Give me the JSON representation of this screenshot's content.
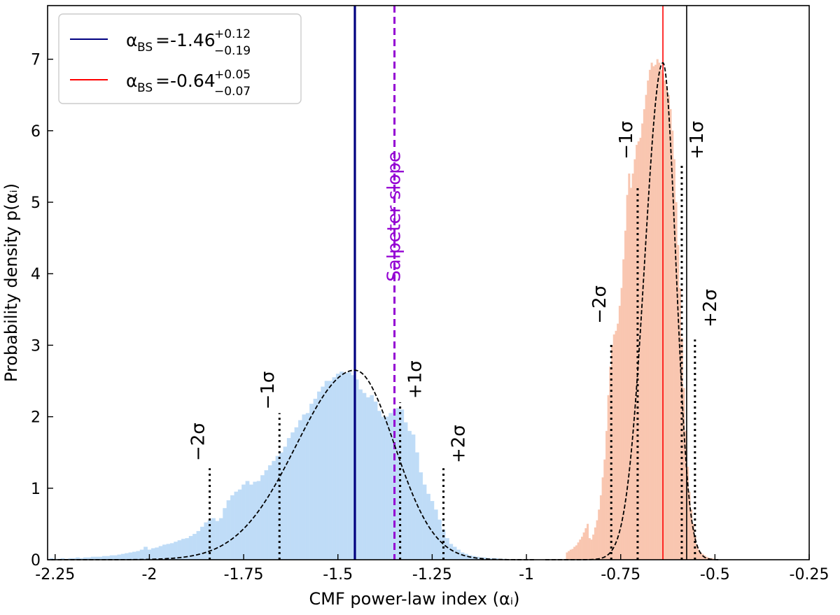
{
  "chart_data": {
    "type": "bar",
    "title": "",
    "xlabel": "CMF power-law index (αᵢ)",
    "ylabel": "Probability density p(αᵢ)",
    "xlim": [
      -2.27,
      -0.25
    ],
    "ylim": [
      0,
      7.75
    ],
    "grid": false,
    "legend_position": "top-left",
    "x_ticks": [
      -2.25,
      -2,
      -1.75,
      -1.5,
      -1.25,
      -1,
      -0.75,
      -0.5,
      -0.25
    ],
    "x_tick_labels": [
      "-2.25",
      "-2",
      "-1.75",
      "-1.5",
      "-1.25",
      "-1",
      "-0.75",
      "-0.5",
      "-0.25"
    ],
    "y_ticks": [
      0,
      1,
      2,
      3,
      4,
      5,
      6,
      7
    ],
    "y_tick_labels": [
      "0",
      "1",
      "2",
      "3",
      "4",
      "5",
      "6",
      "7"
    ],
    "colors": {
      "blue_hist": "#bfdcf7",
      "red_hist": "#f9c6b0",
      "blue_line": "#000080",
      "red_line": "#ff0000",
      "salpeter": "#9400d3",
      "kde": "#000000"
    },
    "legend": [
      {
        "base": "α",
        "sub": "BS",
        "value": "=-1.46",
        "sup": "+0.12",
        "low": "−0.19",
        "color": "#000080"
      },
      {
        "base": "α",
        "sub": "BS",
        "value": "=-0.64",
        "sup": "+0.05",
        "low": "−0.07",
        "color": "#ff0000"
      }
    ],
    "series": [
      {
        "key": "blue",
        "bin_width": 0.01,
        "x": [
          -2.26,
          -2.25,
          -2.24,
          -2.23,
          -2.22,
          -2.21,
          -2.2,
          -2.19,
          -2.18,
          -2.17,
          -2.16,
          -2.15,
          -2.14,
          -2.13,
          -2.12,
          -2.11,
          -2.1,
          -2.09,
          -2.08,
          -2.07,
          -2.06,
          -2.05,
          -2.04,
          -2.03,
          -2.02,
          -2.01,
          -2,
          -1.99,
          -1.98,
          -1.97,
          -1.96,
          -1.95,
          -1.94,
          -1.93,
          -1.92,
          -1.91,
          -1.9,
          -1.89,
          -1.88,
          -1.87,
          -1.86,
          -1.85,
          -1.84,
          -1.83,
          -1.82,
          -1.81,
          -1.8,
          -1.79,
          -1.78,
          -1.77,
          -1.76,
          -1.75,
          -1.74,
          -1.73,
          -1.72,
          -1.71,
          -1.7,
          -1.69,
          -1.68,
          -1.67,
          -1.66,
          -1.65,
          -1.64,
          -1.63,
          -1.62,
          -1.61,
          -1.6,
          -1.59,
          -1.58,
          -1.57,
          -1.56,
          -1.55,
          -1.54,
          -1.53,
          -1.52,
          -1.51,
          -1.5,
          -1.49,
          -1.48,
          -1.47,
          -1.46,
          -1.45,
          -1.44,
          -1.43,
          -1.42,
          -1.41,
          -1.4,
          -1.39,
          -1.38,
          -1.37,
          -1.36,
          -1.35,
          -1.34,
          -1.33,
          -1.32,
          -1.31,
          -1.3,
          -1.29,
          -1.28,
          -1.27,
          -1.26,
          -1.25,
          -1.24,
          -1.23,
          -1.22,
          -1.21,
          -1.2,
          -1.19,
          -1.18,
          -1.17,
          -1.16,
          -1.15,
          -1.14,
          -1.13,
          -1.12,
          -1.11,
          -1.1,
          -1.09,
          -1.08,
          -1.07,
          -1.06
        ],
        "values": [
          0.02,
          0.01,
          0.01,
          0.02,
          0.01,
          0.02,
          0.02,
          0.03,
          0.02,
          0.03,
          0.03,
          0.04,
          0.04,
          0.04,
          0.05,
          0.05,
          0.06,
          0.06,
          0.07,
          0.08,
          0.09,
          0.1,
          0.11,
          0.12,
          0.14,
          0.18,
          0.14,
          0.16,
          0.17,
          0.19,
          0.21,
          0.22,
          0.23,
          0.25,
          0.27,
          0.29,
          0.3,
          0.33,
          0.36,
          0.4,
          0.46,
          0.52,
          0.55,
          0.58,
          0.54,
          0.58,
          0.72,
          0.83,
          0.9,
          0.95,
          0.98,
          1.05,
          1.1,
          1.05,
          1.09,
          1.1,
          1.18,
          1.25,
          1.32,
          1.38,
          1.45,
          1.5,
          1.58,
          1.7,
          1.78,
          1.85,
          1.95,
          2.03,
          2.05,
          2.18,
          2.25,
          2.35,
          2.42,
          2.5,
          2.5,
          2.55,
          2.6,
          2.63,
          2.61,
          2.62,
          2.58,
          2.52,
          2.38,
          2.33,
          2.27,
          2.3,
          2.21,
          2.08,
          2.0,
          2.0,
          2.05,
          2.1,
          2.12,
          2.1,
          1.92,
          1.8,
          1.75,
          1.5,
          1.22,
          1.05,
          0.92,
          0.82,
          0.7,
          0.56,
          0.42,
          0.3,
          0.22,
          0.18,
          0.14,
          0.1,
          0.08,
          0.06,
          0.05,
          0.04,
          0.03,
          0.03,
          0.02,
          0.02,
          0.02,
          0.01,
          0.01
        ]
      },
      {
        "key": "red",
        "bin_width": 0.005,
        "x": [
          -0.8925,
          -0.8875,
          -0.8825,
          -0.8775,
          -0.8725,
          -0.8675,
          -0.8625,
          -0.8575,
          -0.8525,
          -0.8475,
          -0.8425,
          -0.8375,
          -0.8325,
          -0.8275,
          -0.8225,
          -0.8175,
          -0.8125,
          -0.8075,
          -0.8025,
          -0.7975,
          -0.7925,
          -0.7875,
          -0.7825,
          -0.7775,
          -0.7725,
          -0.7675,
          -0.7625,
          -0.7575,
          -0.7525,
          -0.7475,
          -0.7425,
          -0.7375,
          -0.7325,
          -0.7275,
          -0.7225,
          -0.7175,
          -0.7125,
          -0.7075,
          -0.7025,
          -0.6975,
          -0.6925,
          -0.6875,
          -0.6825,
          -0.6775,
          -0.6725,
          -0.6675,
          -0.6625,
          -0.6575,
          -0.6525,
          -0.6475,
          -0.6425,
          -0.6375,
          -0.6325,
          -0.6275,
          -0.6225,
          -0.6175,
          -0.6125,
          -0.6075,
          -0.6025,
          -0.5975,
          -0.5925,
          -0.5875,
          -0.5825,
          -0.5775,
          -0.5725,
          -0.5675,
          -0.5625,
          -0.5575,
          -0.5525,
          -0.5475,
          -0.5425,
          -0.5375,
          -0.5325,
          -0.5275,
          -0.5225,
          -0.5175,
          -0.5125,
          -0.5075,
          -0.5025
        ],
        "values": [
          0.1,
          0.12,
          0.14,
          0.15,
          0.18,
          0.2,
          0.24,
          0.28,
          0.32,
          0.38,
          0.44,
          0.5,
          0.3,
          0.28,
          0.35,
          0.45,
          0.55,
          0.7,
          0.9,
          1.15,
          1.4,
          1.8,
          2.3,
          2.7,
          3.0,
          3.15,
          3.2,
          3.3,
          3.55,
          3.8,
          4.2,
          4.6,
          5.1,
          5.4,
          5.2,
          5.4,
          5.6,
          5.8,
          5.85,
          5.9,
          6.1,
          6.3,
          6.5,
          6.7,
          6.85,
          6.95,
          6.9,
          6.92,
          7.0,
          6.95,
          6.85,
          6.8,
          6.7,
          6.6,
          6.5,
          6.3,
          6.0,
          5.6,
          5.0,
          4.4,
          3.8,
          3.1,
          2.4,
          1.8,
          1.3,
          0.95,
          0.7,
          0.5,
          0.32,
          0.2,
          0.14,
          0.1,
          0.08,
          0.06,
          0.04,
          0.03,
          0.02,
          0.02,
          0.01
        ]
      }
    ],
    "kde": [
      {
        "key": "blue",
        "peak": 2.65,
        "mode": -1.455,
        "sigma_left": 0.155,
        "sigma_right": 0.105,
        "x_range": [
          -2.26,
          -0.98
        ]
      },
      {
        "key": "red",
        "peak": 6.95,
        "mode": -0.638,
        "sigma_left": 0.048,
        "sigma_right": 0.034,
        "x_range": [
          -0.95,
          -0.49
        ]
      }
    ],
    "vertical_lines": [
      {
        "x": -1.455,
        "color": "#000080",
        "width": 3.2,
        "style": "solid"
      },
      {
        "x": -1.35,
        "color": "#9400d3",
        "width": 3,
        "style": "dashed"
      },
      {
        "x": -0.638,
        "color": "#ff0000",
        "width": 1.6,
        "style": "solid"
      },
      {
        "x": -0.575,
        "color": "#000000",
        "width": 1.6,
        "style": "solid"
      }
    ],
    "sigma_markers": [
      {
        "x": -1.84,
        "top": 1.28,
        "label": "−2σ",
        "side": "left",
        "label_y": 1.38
      },
      {
        "x": -1.655,
        "top": 2.05,
        "label": "−1σ",
        "side": "left",
        "label_y": 2.1
      },
      {
        "x": -1.335,
        "top": 2.2,
        "label": "+1σ",
        "side": "right",
        "label_y": 2.25
      },
      {
        "x": -1.22,
        "top": 1.28,
        "label": "+2σ",
        "side": "right",
        "label_y": 1.35
      },
      {
        "x": -0.775,
        "top": 3.05,
        "label": "−2σ",
        "side": "left",
        "label_y": 3.3
      },
      {
        "x": -0.705,
        "top": 5.2,
        "label": "−1σ",
        "side": "left",
        "label_y": 5.6
      },
      {
        "x": -0.588,
        "top": 5.55,
        "label": "+1σ",
        "side": "right",
        "label_y": 5.6
      },
      {
        "x": -0.553,
        "top": 3.08,
        "label": "+2σ",
        "side": "right",
        "label_y": 3.25
      }
    ],
    "annotations": [
      {
        "text": "Salpeter slope",
        "x": -1.335,
        "y": 4.8,
        "color": "#9400d3"
      }
    ]
  }
}
